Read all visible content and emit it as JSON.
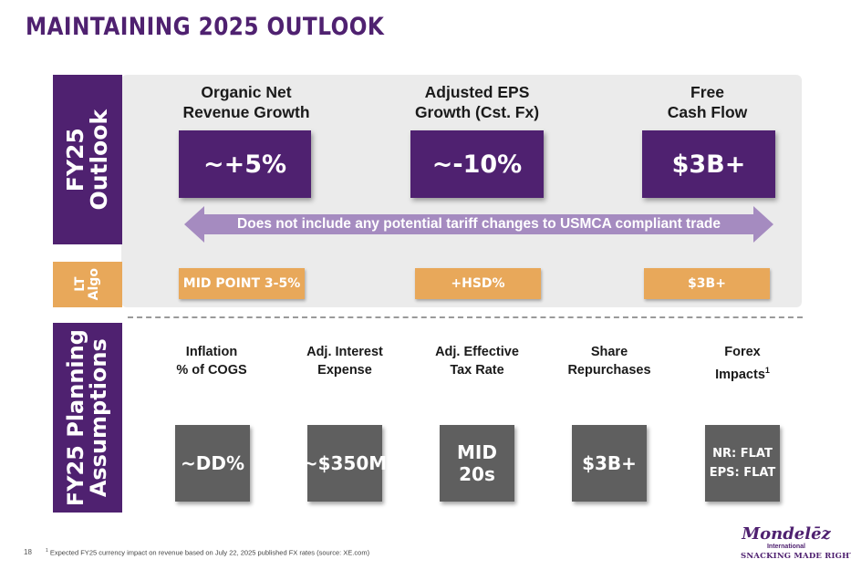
{
  "title": "MAINTAINING 2025 OUTLOOK",
  "tabs": {
    "outlook": [
      "FY25",
      "Outlook"
    ],
    "algo": [
      "LT",
      "Algo"
    ],
    "planning": [
      "FY25 Planning",
      "Assumptions"
    ]
  },
  "outlook": {
    "columns": [
      {
        "heading": [
          "Organic Net",
          "Revenue Growth"
        ],
        "value": "~+5%",
        "lt_algo": "MID POINT 3-5%"
      },
      {
        "heading": [
          "Adjusted EPS",
          "Growth (Cst. Fx)"
        ],
        "value": "~-10%",
        "lt_algo": "+HSD%"
      },
      {
        "heading": [
          "Free",
          "Cash Flow"
        ],
        "value": "$3B+",
        "lt_algo": "$3B+"
      }
    ],
    "arrow_note": "Does not include any potential tariff changes to USMCA compliant trade"
  },
  "planning": {
    "items": [
      {
        "heading": [
          "Inflation",
          "% of COGS"
        ],
        "value": "~DD%"
      },
      {
        "heading": [
          "Adj. Interest",
          "Expense"
        ],
        "value": "~$350M"
      },
      {
        "heading": [
          "Adj. Effective",
          "Tax Rate"
        ],
        "value": "MID 20s"
      },
      {
        "heading": [
          "Share",
          "Repurchases"
        ],
        "value": "$3B+"
      },
      {
        "heading": [
          "Forex",
          "Impacts"
        ],
        "heading_sup": "1",
        "value_lines": [
          "NR: FLAT",
          "EPS: FLAT"
        ]
      }
    ]
  },
  "footer": {
    "page_number": "18",
    "footnote_marker": "1",
    "footnote": "Expected FY25 currency impact on revenue based on July 22, 2025 published FX rates (source: XE.com)"
  },
  "logo": {
    "brand": "Mondelēz",
    "sub": "International",
    "tagline": "SNACKING MADE RIGHT"
  },
  "colors": {
    "purple": "#4f2170",
    "orange": "#e8a85a",
    "gray": "#5f5f5f",
    "arrow": "#a58bc0",
    "panel": "#ebebeb"
  }
}
